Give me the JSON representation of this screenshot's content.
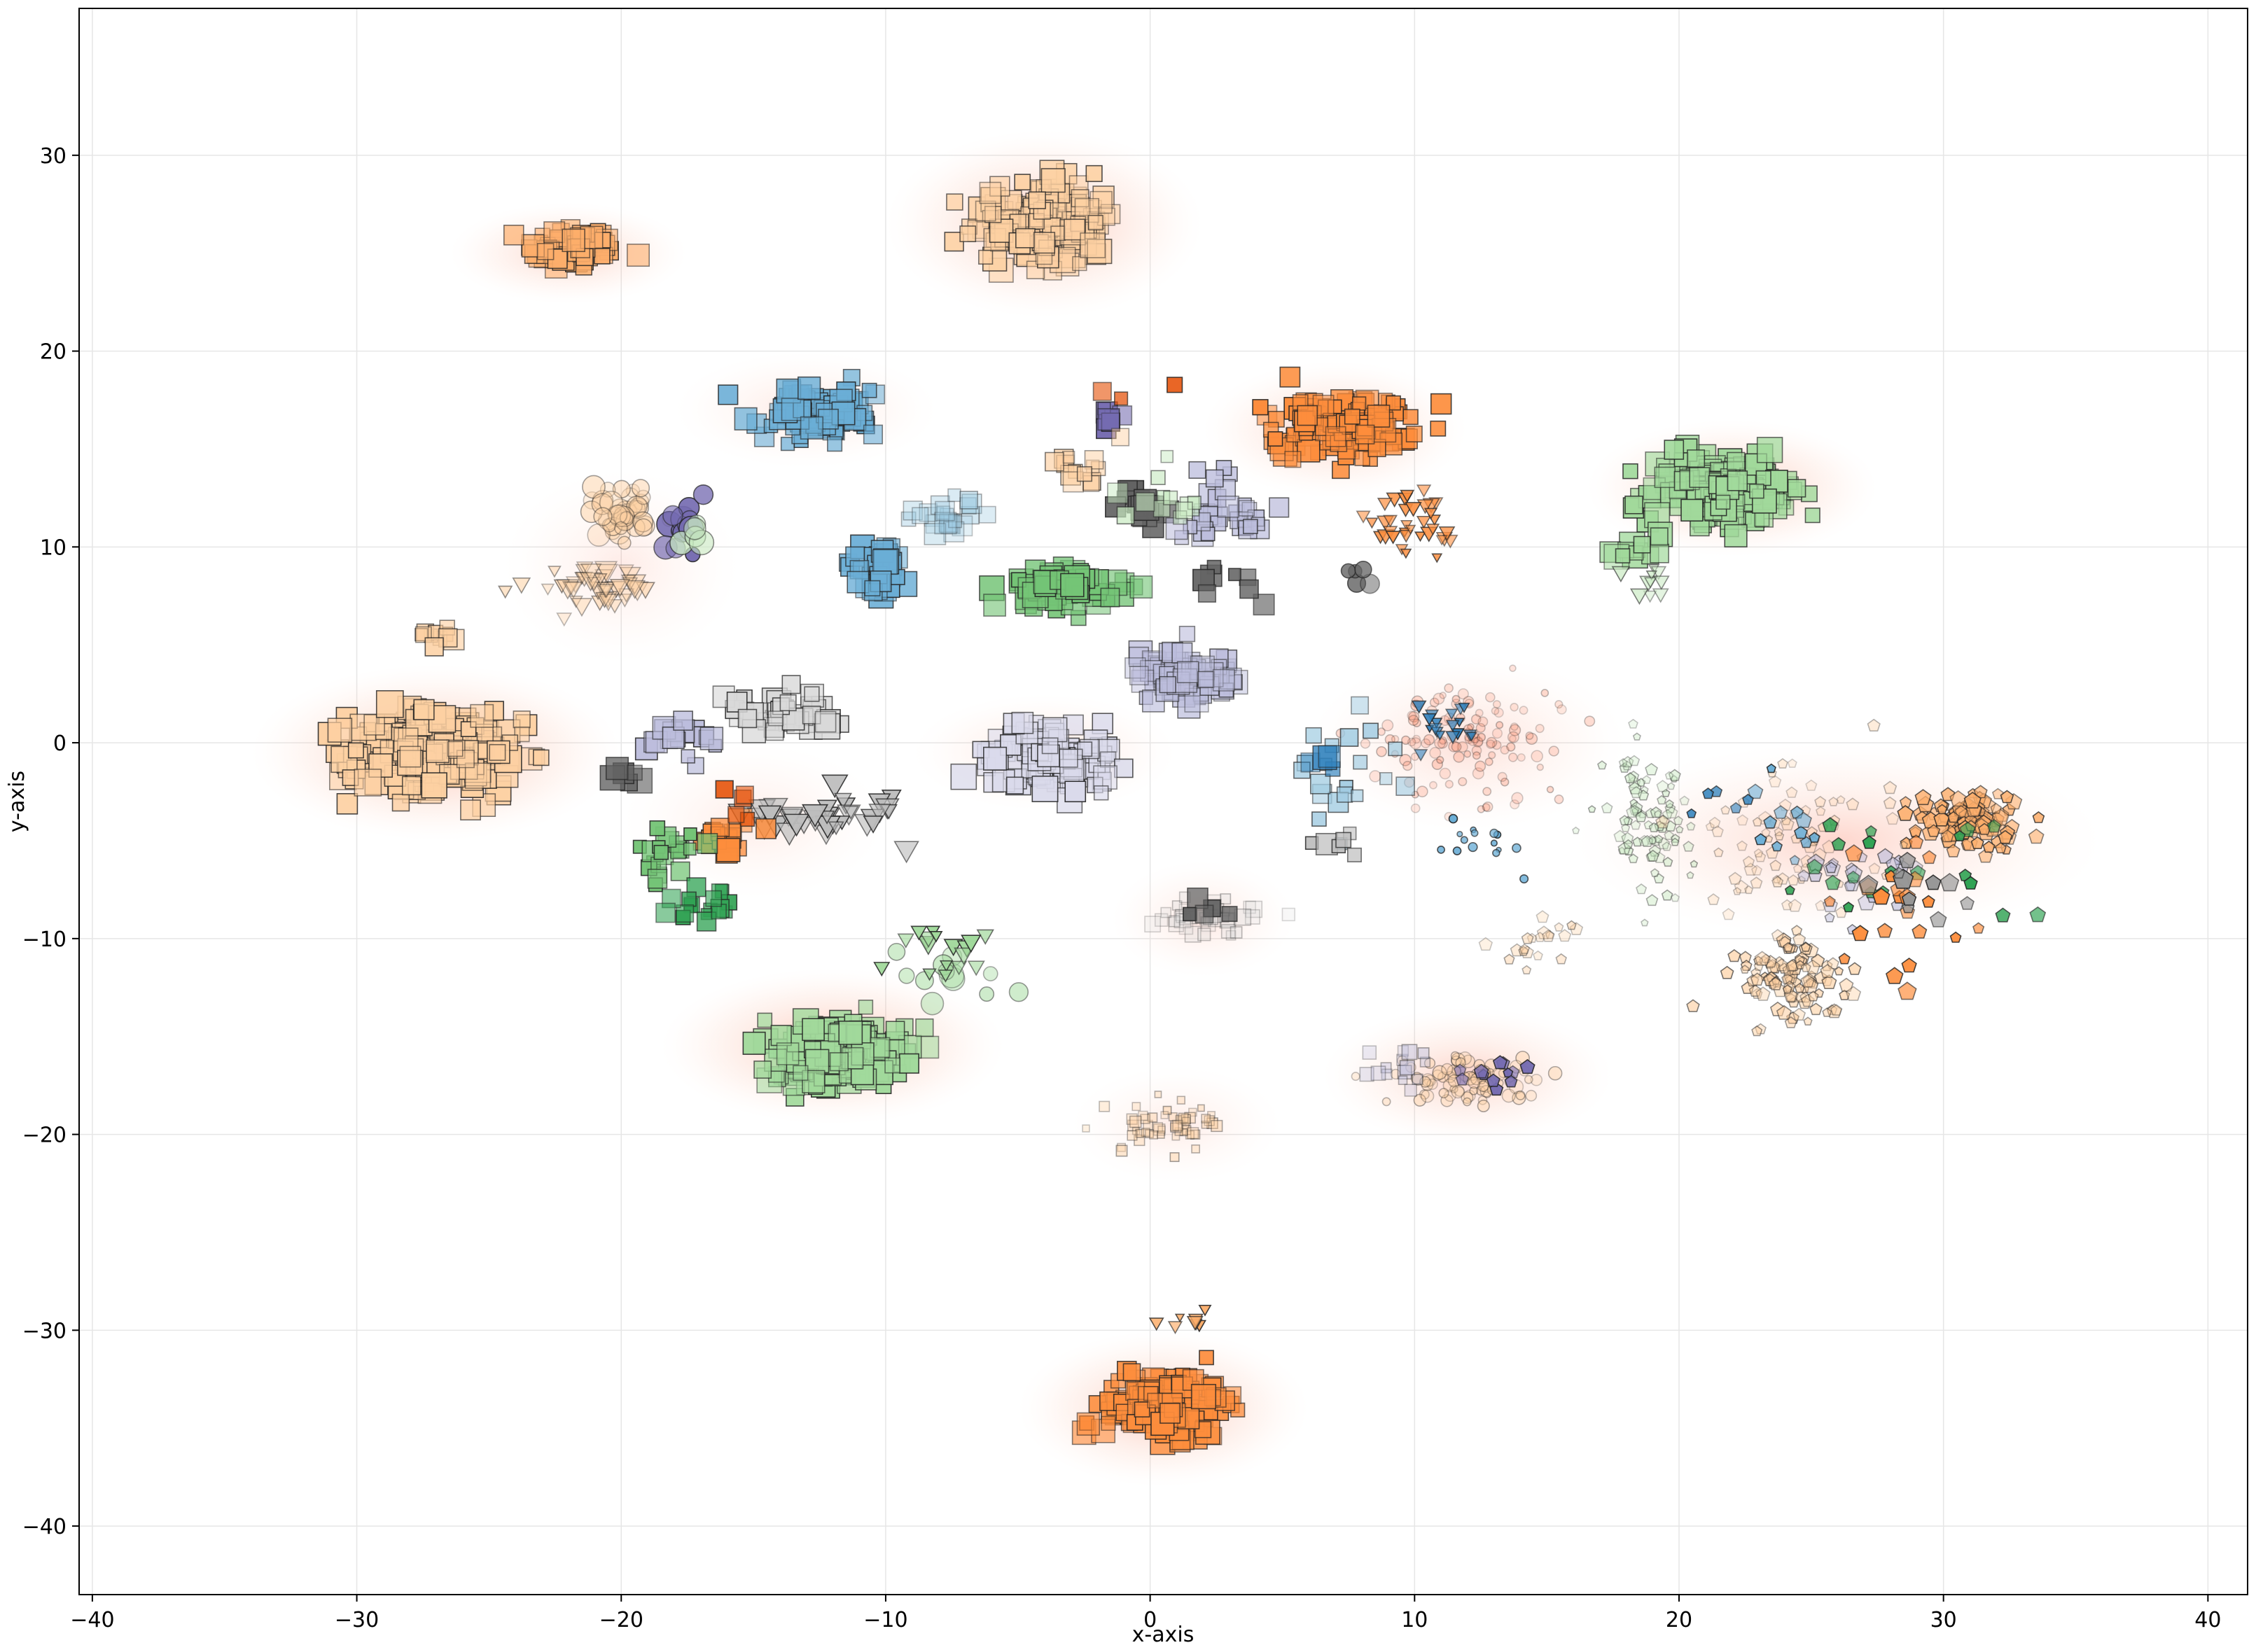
{
  "chart_data": {
    "type": "scatter",
    "title": "",
    "xlabel": "x-axis",
    "ylabel": "y-axis",
    "xlim": [
      -40.5,
      41.5
    ],
    "ylim": [
      -43.5,
      37.5
    ],
    "x_ticks": [
      -40,
      -30,
      -20,
      -10,
      0,
      10,
      20,
      30,
      40
    ],
    "y_ticks": [
      -40,
      -30,
      -20,
      -10,
      0,
      10,
      20,
      30
    ],
    "x_tick_labels": [
      "−40",
      "−30",
      "−20",
      "−10",
      "0",
      "10",
      "20",
      "30",
      "40"
    ],
    "y_tick_labels": [
      "−40",
      "−30",
      "−20",
      "−10",
      "0",
      "10",
      "20",
      "30"
    ],
    "grid": true,
    "legend": "none",
    "density_color": "#fc8d59",
    "clusters": [
      {
        "shape": "square",
        "color": "#fdae6b",
        "center": [
          -21.8,
          25.3
        ],
        "spread": [
          1.6,
          1.0
        ],
        "count": 70,
        "size": 0.9,
        "alpha": 1.0
      },
      {
        "shape": "square",
        "color": "#fdd0a2",
        "center": [
          -4.0,
          26.5
        ],
        "spread": [
          2.5,
          2.0
        ],
        "count": 170,
        "size": 1.0,
        "alpha": 0.9
      },
      {
        "shape": "square",
        "color": "#6baed6",
        "center": [
          -12.8,
          16.8
        ],
        "spread": [
          2.0,
          1.2
        ],
        "count": 85,
        "size": 0.95,
        "alpha": 1.0
      },
      {
        "shape": "square",
        "color": "#fd8d3c",
        "center": [
          7.2,
          16.2
        ],
        "spread": [
          2.3,
          1.5
        ],
        "count": 140,
        "size": 0.95,
        "alpha": 1.0
      },
      {
        "shape": "square",
        "color": "#a1d99b",
        "center": [
          21.8,
          13.0
        ],
        "spread": [
          2.6,
          1.6
        ],
        "count": 190,
        "size": 1.0,
        "alpha": 1.0
      },
      {
        "shape": "square",
        "color": "#fdd0a2",
        "center": [
          -27.0,
          -0.5
        ],
        "spread": [
          3.0,
          2.0
        ],
        "count": 260,
        "size": 1.05,
        "alpha": 1.0
      },
      {
        "shape": "square",
        "color": "#6baed6",
        "center": [
          -10.2,
          8.8
        ],
        "spread": [
          1.0,
          1.2
        ],
        "count": 45,
        "size": 1.0,
        "alpha": 1.0
      },
      {
        "shape": "square",
        "color": "#9ecae1",
        "center": [
          -7.8,
          11.5
        ],
        "spread": [
          1.2,
          1.0
        ],
        "count": 25,
        "size": 0.9,
        "alpha": 0.5
      },
      {
        "shape": "square",
        "color": "#74c476",
        "center": [
          -3.5,
          8.0
        ],
        "spread": [
          2.0,
          1.0
        ],
        "count": 60,
        "size": 1.0,
        "alpha": 1.0
      },
      {
        "shape": "square",
        "color": "#dadaeb",
        "center": [
          -3.7,
          -0.8
        ],
        "spread": [
          2.3,
          1.3
        ],
        "count": 110,
        "size": 1.0,
        "alpha": 1.0
      },
      {
        "shape": "square",
        "color": "#bcbddc",
        "center": [
          1.3,
          3.5
        ],
        "spread": [
          2.0,
          1.3
        ],
        "count": 70,
        "size": 0.95,
        "alpha": 0.8
      },
      {
        "shape": "square",
        "color": "#a1d99b",
        "center": [
          -11.8,
          -15.8
        ],
        "spread": [
          2.5,
          1.6
        ],
        "count": 200,
        "size": 1.0,
        "alpha": 1.0
      },
      {
        "shape": "square",
        "color": "#fd8d3c",
        "center": [
          0.6,
          -33.8
        ],
        "spread": [
          2.1,
          1.5
        ],
        "count": 150,
        "size": 1.0,
        "alpha": 1.0
      },
      {
        "shape": "square",
        "color": "#d9d9d9",
        "center": [
          -13.5,
          1.3
        ],
        "spread": [
          2.2,
          1.2
        ],
        "count": 45,
        "size": 1.0,
        "alpha": 1.0
      },
      {
        "shape": "square",
        "color": "#bcbddc",
        "center": [
          -17.5,
          0.2
        ],
        "spread": [
          1.5,
          1.0
        ],
        "count": 18,
        "size": 0.9,
        "alpha": 1.0
      },
      {
        "shape": "triangle",
        "color": "#bdbdbd",
        "center": [
          -12.5,
          -3.8
        ],
        "spread": [
          2.5,
          1.0
        ],
        "count": 40,
        "size": 1.0,
        "alpha": 1.0
      },
      {
        "shape": "square",
        "color": "#636363",
        "center": [
          -20.0,
          -1.8
        ],
        "spread": [
          0.8,
          0.8
        ],
        "count": 6,
        "size": 1.0,
        "alpha": 1.0
      },
      {
        "shape": "square",
        "color": "#fd8d3c",
        "center": [
          -16.0,
          -4.8
        ],
        "spread": [
          1.2,
          1.0
        ],
        "count": 18,
        "size": 0.95,
        "alpha": 1.0
      },
      {
        "shape": "square",
        "color": "#e6550d",
        "center": [
          -15.5,
          -3.0
        ],
        "spread": [
          0.8,
          0.8
        ],
        "count": 5,
        "size": 0.8,
        "alpha": 1.0
      },
      {
        "shape": "square",
        "color": "#74c476",
        "center": [
          -18.2,
          -5.8
        ],
        "spread": [
          1.3,
          1.3
        ],
        "count": 22,
        "size": 0.85,
        "alpha": 1.0
      },
      {
        "shape": "square",
        "color": "#31a354",
        "center": [
          -16.5,
          -8.3
        ],
        "spread": [
          1.5,
          0.8
        ],
        "count": 18,
        "size": 0.75,
        "alpha": 1.0
      },
      {
        "shape": "square",
        "color": "#636363",
        "center": [
          -0.3,
          12.0
        ],
        "spread": [
          1.0,
          0.9
        ],
        "count": 16,
        "size": 1.0,
        "alpha": 1.0
      },
      {
        "shape": "square",
        "color": "#756bb1",
        "center": [
          -1.5,
          16.5
        ],
        "spread": [
          0.8,
          0.9
        ],
        "count": 8,
        "size": 0.85,
        "alpha": 1.0
      },
      {
        "shape": "square",
        "color": "#bcbddc",
        "center": [
          2.5,
          11.5
        ],
        "spread": [
          1.8,
          1.8
        ],
        "count": 35,
        "size": 0.85,
        "alpha": 0.9
      },
      {
        "shape": "square",
        "color": "#636363",
        "center": [
          3.0,
          8.5
        ],
        "spread": [
          1.5,
          1.2
        ],
        "count": 8,
        "size": 0.85,
        "alpha": 1.0
      },
      {
        "shape": "square",
        "color": "#fdd0a2",
        "center": [
          -2.5,
          14.0
        ],
        "spread": [
          1.3,
          1.3
        ],
        "count": 15,
        "size": 0.8,
        "alpha": 0.8
      },
      {
        "shape": "square",
        "color": "#c7e9c0",
        "center": [
          0.5,
          12.5
        ],
        "spread": [
          1.5,
          1.5
        ],
        "count": 12,
        "size": 0.8,
        "alpha": 0.7
      },
      {
        "shape": "circle",
        "color": "#fdd0a2",
        "center": [
          -19.8,
          11.5
        ],
        "spread": [
          1.1,
          1.2
        ],
        "count": 45,
        "size": 0.9,
        "alpha": 0.5
      },
      {
        "shape": "circle",
        "color": "#756bb1",
        "center": [
          -17.8,
          10.8
        ],
        "spread": [
          0.9,
          1.2
        ],
        "count": 14,
        "size": 1.0,
        "alpha": 1.0
      },
      {
        "shape": "circle",
        "color": "#c7e9c0",
        "center": [
          -17.2,
          10.5
        ],
        "spread": [
          0.6,
          0.8
        ],
        "count": 5,
        "size": 1.1,
        "alpha": 0.9
      },
      {
        "shape": "triangle",
        "color": "#fdd0a2",
        "center": [
          -21.0,
          8.0
        ],
        "spread": [
          1.8,
          1.0
        ],
        "count": 45,
        "size": 0.85,
        "alpha": 0.6
      },
      {
        "shape": "triangle",
        "color": "#fd8d3c",
        "center": [
          9.8,
          11.0
        ],
        "spread": [
          1.4,
          1.4
        ],
        "count": 35,
        "size": 0.65,
        "alpha": 1.0
      },
      {
        "shape": "circle",
        "color": "#636363",
        "center": [
          7.5,
          8.5
        ],
        "spread": [
          0.8,
          0.7
        ],
        "count": 5,
        "size": 0.9,
        "alpha": 0.9
      },
      {
        "shape": "circle",
        "color": "#fc9272",
        "center": [
          12.0,
          0.3
        ],
        "spread": [
          3.5,
          2.5
        ],
        "count": 120,
        "size": 0.45,
        "alpha": 0.35
      },
      {
        "shape": "triangle",
        "color": "#3182bd",
        "center": [
          11.0,
          1.0
        ],
        "spread": [
          1.5,
          1.5
        ],
        "count": 18,
        "size": 0.55,
        "alpha": 1.0
      },
      {
        "shape": "square",
        "color": "#9ecae1",
        "center": [
          6.5,
          -1.5
        ],
        "spread": [
          2.2,
          2.5
        ],
        "count": 20,
        "size": 0.85,
        "alpha": 0.9
      },
      {
        "shape": "square",
        "color": "#3182bd",
        "center": [
          6.8,
          -0.8
        ],
        "spread": [
          0.4,
          0.4
        ],
        "count": 4,
        "size": 1.0,
        "alpha": 0.9
      },
      {
        "shape": "square",
        "color": "#bdbdbd",
        "center": [
          7.0,
          -5.0
        ],
        "spread": [
          1.2,
          0.6
        ],
        "count": 6,
        "size": 0.85,
        "alpha": 1.0
      },
      {
        "shape": "pentagon",
        "color": "#c7e9c0",
        "center": [
          19.0,
          -4.0
        ],
        "spread": [
          1.5,
          3.0
        ],
        "count": 90,
        "size": 0.5,
        "alpha": 0.5
      },
      {
        "shape": "pentagon",
        "color": "#fdae6b",
        "center": [
          31.0,
          -4.0
        ],
        "spread": [
          1.8,
          1.3
        ],
        "count": 100,
        "size": 0.7,
        "alpha": 0.9
      },
      {
        "shape": "pentagon",
        "color": "#fdd0a2",
        "center": [
          24.5,
          -12.0
        ],
        "spread": [
          2.0,
          1.8
        ],
        "count": 110,
        "size": 0.6,
        "alpha": 0.7
      },
      {
        "shape": "pentagon",
        "color": "#fdd0a2",
        "center": [
          24.5,
          -5.0
        ],
        "spread": [
          3.5,
          3.5
        ],
        "count": 80,
        "size": 0.55,
        "alpha": 0.4
      },
      {
        "shape": "pentagon",
        "color": "#bcbddc",
        "center": [
          26.5,
          -7.0
        ],
        "spread": [
          2.5,
          2.0
        ],
        "count": 22,
        "size": 0.7,
        "alpha": 0.7
      },
      {
        "shape": "pentagon",
        "color": "#31a354",
        "center": [
          27.5,
          -6.5
        ],
        "spread": [
          4.0,
          3.0
        ],
        "count": 20,
        "size": 0.65,
        "alpha": 1.0
      },
      {
        "shape": "pentagon",
        "color": "#fd8d3c",
        "center": [
          28.5,
          -9.0
        ],
        "spread": [
          2.5,
          3.0
        ],
        "count": 22,
        "size": 0.75,
        "alpha": 1.0
      },
      {
        "shape": "pentagon",
        "color": "#969696",
        "center": [
          29.0,
          -7.0
        ],
        "spread": [
          2.0,
          1.5
        ],
        "count": 10,
        "size": 0.85,
        "alpha": 1.0
      },
      {
        "shape": "pentagon",
        "color": "#6baed6",
        "center": [
          24.0,
          -4.0
        ],
        "spread": [
          1.5,
          2.0
        ],
        "count": 12,
        "size": 0.65,
        "alpha": 1.0
      },
      {
        "shape": "square",
        "color": "#d9d9d9",
        "center": [
          2.0,
          -9.0
        ],
        "spread": [
          1.8,
          1.2
        ],
        "count": 40,
        "size": 0.65,
        "alpha": 0.35
      },
      {
        "shape": "square",
        "color": "#636363",
        "center": [
          2.3,
          -8.5
        ],
        "spread": [
          0.8,
          0.8
        ],
        "count": 5,
        "size": 0.95,
        "alpha": 1.0
      },
      {
        "shape": "circle",
        "color": "#fdd0a2",
        "center": [
          12.0,
          -17.2
        ],
        "spread": [
          2.5,
          1.2
        ],
        "count": 80,
        "size": 0.55,
        "alpha": 0.45
      },
      {
        "shape": "pentagon",
        "color": "#756bb1",
        "center": [
          13.0,
          -17.0
        ],
        "spread": [
          1.5,
          1.0
        ],
        "count": 12,
        "size": 0.65,
        "alpha": 1.0
      },
      {
        "shape": "square",
        "color": "#bcbddc",
        "center": [
          9.5,
          -16.5
        ],
        "spread": [
          1.2,
          1.0
        ],
        "count": 15,
        "size": 0.6,
        "alpha": 0.5
      },
      {
        "shape": "square",
        "color": "#fdd0a2",
        "center": [
          0.5,
          -19.5
        ],
        "spread": [
          2.0,
          1.2
        ],
        "count": 55,
        "size": 0.45,
        "alpha": 0.5
      },
      {
        "shape": "circle",
        "color": "#a1d99b",
        "center": [
          -7.5,
          -12.0
        ],
        "spread": [
          1.5,
          1.5
        ],
        "count": 12,
        "size": 1.0,
        "alpha": 0.6
      },
      {
        "shape": "triangle",
        "color": "#a1d99b",
        "center": [
          -8.0,
          -10.5
        ],
        "spread": [
          2.0,
          1.5
        ],
        "count": 18,
        "size": 0.8,
        "alpha": 1.0
      },
      {
        "shape": "triangle",
        "color": "#fdae6b",
        "center": [
          1.5,
          -29.5
        ],
        "spread": [
          1.5,
          0.4
        ],
        "count": 8,
        "size": 0.6,
        "alpha": 1.0
      },
      {
        "shape": "square",
        "color": "#a1d99b",
        "center": [
          18.5,
          9.8
        ],
        "spread": [
          1.0,
          1.0
        ],
        "count": 12,
        "size": 1.0,
        "alpha": 0.9
      },
      {
        "shape": "triangle",
        "color": "#c7e9c0",
        "center": [
          19.0,
          8.2
        ],
        "spread": [
          1.5,
          0.8
        ],
        "count": 10,
        "size": 0.7,
        "alpha": 0.7
      },
      {
        "shape": "square",
        "color": "#fdd0a2",
        "center": [
          -27.0,
          5.5
        ],
        "spread": [
          0.8,
          0.5
        ],
        "count": 12,
        "size": 0.8,
        "alpha": 0.9
      },
      {
        "shape": "square",
        "color": "#e6550d",
        "center": [
          -0.5,
          18.0
        ],
        "spread": [
          2.0,
          1.5
        ],
        "count": 3,
        "size": 0.8,
        "alpha": 1.0
      },
      {
        "shape": "pentagon",
        "color": "#3182bd",
        "center": [
          22.0,
          -2.5
        ],
        "spread": [
          1.0,
          1.0
        ],
        "count": 5,
        "size": 0.6,
        "alpha": 1.0
      },
      {
        "shape": "circle",
        "color": "#6baed6",
        "center": [
          12.5,
          -5.0
        ],
        "spread": [
          2.0,
          1.5
        ],
        "count": 15,
        "size": 0.35,
        "alpha": 1.0
      },
      {
        "shape": "pentagon",
        "color": "#fdd0a2",
        "center": [
          15.0,
          -10.0
        ],
        "spread": [
          1.5,
          1.5
        ],
        "count": 20,
        "size": 0.55,
        "alpha": 0.5
      }
    ],
    "density_regions": [
      {
        "center": [
          -22.0,
          25.0
        ],
        "radius": [
          4.5,
          2.6
        ],
        "weight": 0.55
      },
      {
        "center": [
          -4.0,
          26.5
        ],
        "radius": [
          6.0,
          4.8
        ],
        "weight": 0.7
      },
      {
        "center": [
          7.0,
          16.0
        ],
        "radius": [
          5.0,
          3.5
        ],
        "weight": 0.6
      },
      {
        "center": [
          22.0,
          13.0
        ],
        "radius": [
          5.5,
          3.5
        ],
        "weight": 0.7
      },
      {
        "center": [
          -27.0,
          -0.5
        ],
        "radius": [
          7.0,
          4.5
        ],
        "weight": 0.8
      },
      {
        "center": [
          -12.0,
          -15.5
        ],
        "radius": [
          6.5,
          4.0
        ],
        "weight": 0.75
      },
      {
        "center": [
          0.5,
          -34.0
        ],
        "radius": [
          5.5,
          4.0
        ],
        "weight": 0.7
      },
      {
        "center": [
          -4.0,
          -0.5
        ],
        "radius": [
          5.0,
          3.0
        ],
        "weight": 0.35
      },
      {
        "center": [
          -13.0,
          17.0
        ],
        "radius": [
          5.0,
          3.0
        ],
        "weight": 0.3
      },
      {
        "center": [
          12.0,
          -17.0
        ],
        "radius": [
          5.5,
          3.5
        ],
        "weight": 0.55
      },
      {
        "center": [
          26.0,
          -5.0
        ],
        "radius": [
          10.0,
          5.0
        ],
        "weight": 0.5
      },
      {
        "center": [
          12.0,
          0.0
        ],
        "radius": [
          6.0,
          4.5
        ],
        "weight": 0.4
      },
      {
        "center": [
          1.0,
          -19.5
        ],
        "radius": [
          4.0,
          3.0
        ],
        "weight": 0.25
      },
      {
        "center": [
          2.0,
          -9.0
        ],
        "radius": [
          3.5,
          3.0
        ],
        "weight": 0.3
      },
      {
        "center": [
          -20.0,
          9.0
        ],
        "radius": [
          4.5,
          5.0
        ],
        "weight": 0.25
      },
      {
        "center": [
          -15.0,
          -4.0
        ],
        "radius": [
          5.0,
          4.0
        ],
        "weight": 0.25
      }
    ]
  }
}
